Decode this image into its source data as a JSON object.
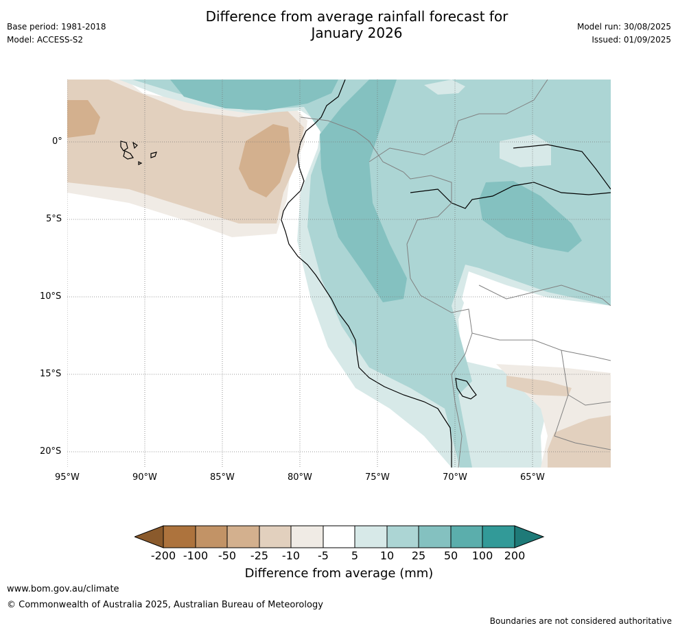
{
  "header": {
    "title_line1": "Difference from average rainfall forecast for",
    "title_line2": "January 2026",
    "base_period": "Base period: 1981-2018",
    "model": "Model: ACCESS-S2",
    "model_run": "Model run: 30/08/2025",
    "issued": "Issued: 01/09/2025"
  },
  "map": {
    "lat_labels": [
      "0°",
      "5°S",
      "10°S",
      "15°S",
      "20°S"
    ],
    "lon_labels": [
      "95°W",
      "90°W",
      "85°W",
      "80°W",
      "75°W",
      "70°W",
      "65°W"
    ],
    "grid": "dotted"
  },
  "colorbar": {
    "title": "Difference from average (mm)",
    "labels": [
      "-200",
      "-100",
      "-50",
      "-25",
      "-10",
      "-5",
      "5",
      "10",
      "25",
      "50",
      "100",
      "200"
    ],
    "colors": [
      "#8a5a2c",
      "#ad733d",
      "#c29366",
      "#d3b08e",
      "#e2d0be",
      "#f0ebe5",
      "#ffffff",
      "#d7e9e8",
      "#acd5d4",
      "#84c1c0",
      "#5baeac",
      "#329a98",
      "#1e7a78"
    ]
  },
  "footer": {
    "website": "www.bom.gov.au/climate",
    "copyright": "© Commonwealth of Australia 2025, Australian Bureau of Meteorology",
    "disclaimer": "Boundaries are not considered authoritative"
  }
}
